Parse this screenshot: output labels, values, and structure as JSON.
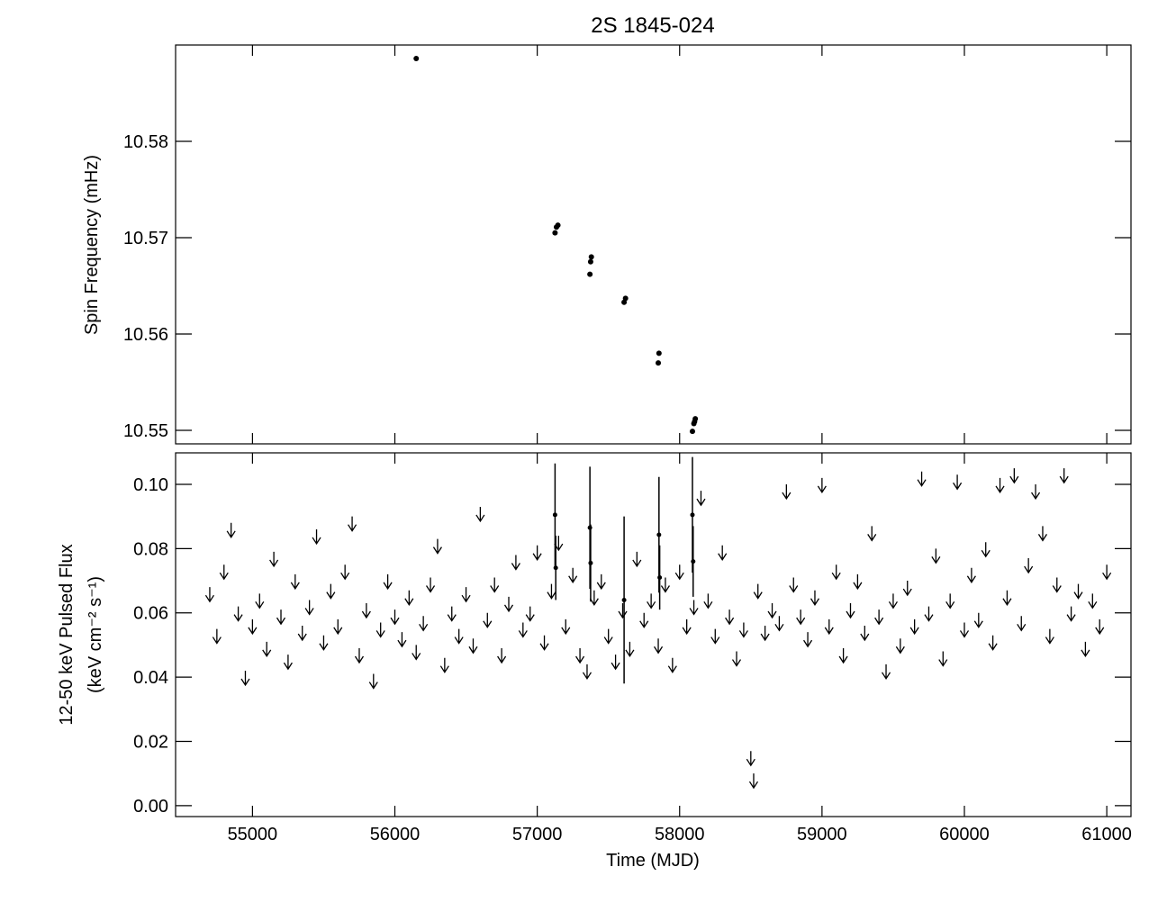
{
  "chart_data": [
    {
      "type": "scatter",
      "title": "2S 1845-024",
      "y_label": "Spin Frequency (mHz)",
      "xlim": [
        54460,
        61170
      ],
      "xticks": [
        55000,
        56000,
        57000,
        58000,
        59000,
        60000,
        61000
      ],
      "xtick_labels": false,
      "ylim": [
        10.5486,
        10.59
      ],
      "yticks": [
        10.55,
        10.56,
        10.57,
        10.58
      ],
      "color": "#000000",
      "x": [
        56150,
        57125,
        57135,
        57145,
        57370,
        57375,
        57380,
        57610,
        57620,
        57850,
        57855,
        58090,
        58100,
        58105,
        58110
      ],
      "y": [
        10.5886,
        10.5705,
        10.5711,
        10.5713,
        10.5662,
        10.5675,
        10.568,
        10.5633,
        10.5637,
        10.557,
        10.558,
        10.5499,
        10.5507,
        10.5509,
        10.5512
      ]
    },
    {
      "type": "limits",
      "y_label": "12-50 keV Pulsed Flux",
      "y_label_2": "(keV cm⁻² s⁻¹)",
      "x_label": "Time (MJD)",
      "xlim": [
        54460,
        61170
      ],
      "xticks": [
        55000,
        56000,
        57000,
        58000,
        59000,
        60000,
        61000
      ],
      "xtick_labels": true,
      "ylim": [
        -0.0034,
        0.1098
      ],
      "yticks": [
        {
          "value": 0,
          "label": "0.00"
        },
        0.02,
        0.04,
        0.06,
        0.08,
        {
          "value": 0.1,
          "label": "0.10"
        }
      ],
      "color": "#000000",
      "detections": {
        "x": [
          57125,
          57130,
          57370,
          57375,
          57610,
          57855,
          57860,
          58090,
          58095
        ],
        "values": [
          0.0905,
          0.074,
          0.0865,
          0.0755,
          0.064,
          0.0843,
          0.071,
          0.0905,
          0.076
        ],
        "errors": [
          0.016,
          0.01,
          0.019,
          0.012,
          0.026,
          0.018,
          0.01,
          0.018,
          0.011
        ]
      },
      "upper_limits": {
        "x": [
          54700,
          54750,
          54800,
          54850,
          54900,
          54950,
          55000,
          55050,
          55100,
          55150,
          55200,
          55250,
          55300,
          55350,
          55400,
          55450,
          55500,
          55550,
          55600,
          55650,
          55700,
          55750,
          55800,
          55850,
          55900,
          55950,
          56000,
          56050,
          56100,
          56150,
          56200,
          56250,
          56300,
          56350,
          56400,
          56450,
          56500,
          56550,
          56600,
          56650,
          56700,
          56750,
          56800,
          56850,
          56900,
          56950,
          57000,
          57050,
          57100,
          57150,
          57200,
          57250,
          57300,
          57350,
          57400,
          57450,
          57500,
          57550,
          57600,
          57650,
          57700,
          57750,
          57800,
          57850,
          57900,
          57950,
          58000,
          58050,
          58100,
          58150,
          58200,
          58250,
          58300,
          58350,
          58400,
          58450,
          58500,
          58520,
          58550,
          58600,
          58650,
          58700,
          58750,
          58800,
          58850,
          58900,
          58950,
          59000,
          59050,
          59100,
          59150,
          59200,
          59250,
          59300,
          59350,
          59400,
          59450,
          59500,
          59550,
          59600,
          59650,
          59700,
          59750,
          59800,
          59850,
          59900,
          59950,
          60000,
          60050,
          60100,
          60150,
          60200,
          60250,
          60300,
          60350,
          60400,
          60450,
          60500,
          60550,
          60600,
          60650,
          60700,
          60750,
          60800,
          60850,
          60900,
          60950,
          61000
        ],
        "values": [
          0.068,
          0.055,
          0.075,
          0.088,
          0.062,
          0.042,
          0.058,
          0.066,
          0.051,
          0.079,
          0.061,
          0.047,
          0.072,
          0.056,
          0.064,
          0.086,
          0.053,
          0.069,
          0.058,
          0.075,
          0.09,
          0.049,
          0.063,
          0.041,
          0.057,
          0.072,
          0.061,
          0.054,
          0.067,
          0.05,
          0.059,
          0.071,
          0.083,
          0.046,
          0.062,
          0.055,
          0.068,
          0.052,
          0.093,
          0.06,
          0.071,
          0.049,
          0.065,
          0.078,
          0.057,
          0.062,
          0.081,
          0.053,
          0.069,
          0.084,
          0.058,
          0.074,
          0.049,
          0.044,
          0.067,
          0.072,
          0.055,
          0.047,
          0.063,
          0.051,
          0.079,
          0.06,
          0.066,
          0.052,
          0.071,
          0.046,
          0.075,
          0.058,
          0.064,
          0.098,
          0.066,
          0.055,
          0.081,
          0.061,
          0.048,
          0.057,
          0.017,
          0.01,
          0.069,
          0.056,
          0.063,
          0.059,
          0.1,
          0.071,
          0.061,
          0.054,
          0.067,
          0.102,
          0.058,
          0.075,
          0.049,
          0.063,
          0.072,
          0.056,
          0.087,
          0.061,
          0.044,
          0.066,
          0.052,
          0.07,
          0.058,
          0.104,
          0.062,
          0.08,
          0.048,
          0.066,
          0.103,
          0.057,
          0.074,
          0.06,
          0.082,
          0.053,
          0.102,
          0.067,
          0.105,
          0.059,
          0.077,
          0.1,
          0.087,
          0.055,
          0.071,
          0.105,
          0.062,
          0.069,
          0.051,
          0.066,
          0.058,
          0.075
        ]
      }
    }
  ]
}
